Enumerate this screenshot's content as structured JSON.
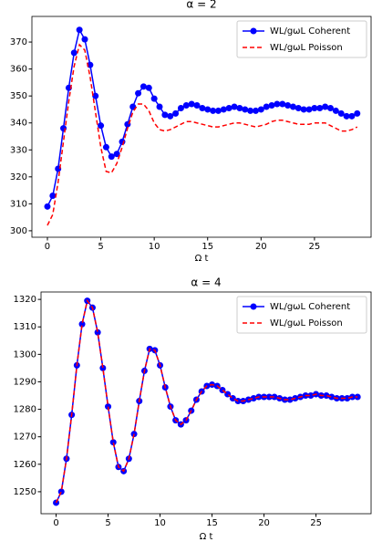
{
  "chart_data": [
    {
      "type": "line",
      "title": "α = 2",
      "x_label": "Ω t",
      "x": [
        0,
        0.5,
        1,
        1.5,
        2,
        2.5,
        3,
        3.5,
        4,
        4.5,
        5,
        5.5,
        6,
        6.5,
        7,
        7.5,
        8,
        8.5,
        9,
        9.5,
        10,
        10.5,
        11,
        11.5,
        12,
        12.5,
        13,
        13.5,
        14,
        14.5,
        15,
        15.5,
        16,
        16.5,
        17,
        17.5,
        18,
        18.5,
        19,
        19.5,
        20,
        20.5,
        21,
        21.5,
        22,
        22.5,
        23,
        23.5,
        24,
        24.5,
        25,
        25.5,
        26,
        26.5,
        27,
        27.5,
        28,
        28.5,
        29
      ],
      "series": [
        {
          "name": "WL/gωL Coherent",
          "color": "#0000ff",
          "marker": true,
          "values": [
            309,
            313,
            323,
            338,
            353,
            366,
            374.5,
            371,
            361.5,
            350,
            339,
            331,
            327.5,
            328.5,
            333,
            339.5,
            346,
            351,
            353.5,
            353,
            349,
            346,
            343,
            342.5,
            343.5,
            345.5,
            346.5,
            347,
            346.5,
            345.5,
            345,
            344.5,
            344.5,
            345,
            345.5,
            346,
            345.5,
            345,
            344.5,
            344.5,
            345,
            346,
            346.5,
            347,
            347,
            346.5,
            346,
            345.5,
            345,
            345,
            345.5,
            345.5,
            346,
            345.5,
            344.5,
            343.5,
            342.5,
            342.5,
            343.5
          ]
        },
        {
          "name": "WL/gωL Poisson",
          "color": "#ff0000",
          "dashed": true,
          "values": [
            302,
            306,
            318,
            333,
            348,
            361,
            369,
            367,
            357,
            344,
            331,
            322,
            321.5,
            325,
            331,
            338,
            344,
            347,
            347,
            344.5,
            340,
            337.5,
            337,
            337.5,
            338.5,
            339.5,
            340.5,
            340.5,
            340,
            339.5,
            339,
            338.5,
            338.5,
            339,
            339.5,
            340,
            340,
            339.5,
            339,
            338.5,
            339,
            339.5,
            340.5,
            341,
            341,
            340.5,
            340,
            339.5,
            339.5,
            339.5,
            340,
            340,
            340,
            339,
            338,
            337,
            337,
            337.5,
            338.5
          ]
        }
      ],
      "xlim": [
        -1.45,
        30.3
      ],
      "xticks": [
        0,
        5,
        10,
        15,
        20,
        25
      ],
      "ylim": [
        297.6,
        379.5
      ],
      "yticks": [
        300,
        310,
        320,
        330,
        340,
        350,
        360,
        370
      ],
      "legend": "upper right"
    },
    {
      "type": "line",
      "title": "α = 4",
      "x_label": "Ω t",
      "x": [
        0,
        0.5,
        1,
        1.5,
        2,
        2.5,
        3,
        3.5,
        4,
        4.5,
        5,
        5.5,
        6,
        6.5,
        7,
        7.5,
        8,
        8.5,
        9,
        9.5,
        10,
        10.5,
        11,
        11.5,
        12,
        12.5,
        13,
        13.5,
        14,
        14.5,
        15,
        15.5,
        16,
        16.5,
        17,
        17.5,
        18,
        18.5,
        19,
        19.5,
        20,
        20.5,
        21,
        21.5,
        22,
        22.5,
        23,
        23.5,
        24,
        24.5,
        25,
        25.5,
        26,
        26.5,
        27,
        27.5,
        28,
        28.5,
        29
      ],
      "series": [
        {
          "name": "WL/gωL Coherent",
          "color": "#0000ff",
          "marker": true,
          "values": [
            1246,
            1250,
            1262,
            1278,
            1296,
            1311,
            1319.5,
            1317,
            1308,
            1295,
            1281,
            1268,
            1259,
            1257.5,
            1262,
            1271,
            1283,
            1294,
            1302,
            1301.5,
            1296,
            1288,
            1281,
            1276,
            1274.5,
            1276,
            1279.5,
            1283.5,
            1286.5,
            1288.5,
            1289,
            1288.5,
            1287,
            1285.5,
            1284,
            1283,
            1283,
            1283.5,
            1284,
            1284.5,
            1284.5,
            1284.5,
            1284.5,
            1284,
            1283.5,
            1283.5,
            1284,
            1284.5,
            1285,
            1285,
            1285.5,
            1285,
            1285,
            1284.5,
            1284,
            1284,
            1284,
            1284.5,
            1284.5
          ]
        },
        {
          "name": "WL/gωL Poisson",
          "color": "#ff0000",
          "dashed": true,
          "values": [
            1246,
            1250,
            1262,
            1278,
            1296,
            1311,
            1319.5,
            1317,
            1308,
            1295,
            1281,
            1268,
            1259,
            1257.5,
            1262,
            1271,
            1283,
            1294,
            1302,
            1301.5,
            1296,
            1288,
            1281,
            1276,
            1274.5,
            1276,
            1279.5,
            1283.5,
            1286.5,
            1288.5,
            1289,
            1288.5,
            1287,
            1285.5,
            1284,
            1283,
            1283,
            1283.5,
            1284,
            1284.5,
            1284.5,
            1284.5,
            1284.5,
            1284,
            1283.5,
            1283.5,
            1284,
            1284.5,
            1285,
            1285,
            1285.5,
            1285,
            1285,
            1284.5,
            1284,
            1284,
            1284,
            1284.5,
            1284.5
          ]
        }
      ],
      "xlim": [
        -1.45,
        30.3
      ],
      "xticks": [
        0,
        5,
        10,
        15,
        20,
        25
      ],
      "ylim": [
        1242.0,
        1322.7
      ],
      "yticks": [
        1250,
        1260,
        1270,
        1280,
        1290,
        1300,
        1310,
        1320
      ],
      "legend": "upper right"
    }
  ]
}
